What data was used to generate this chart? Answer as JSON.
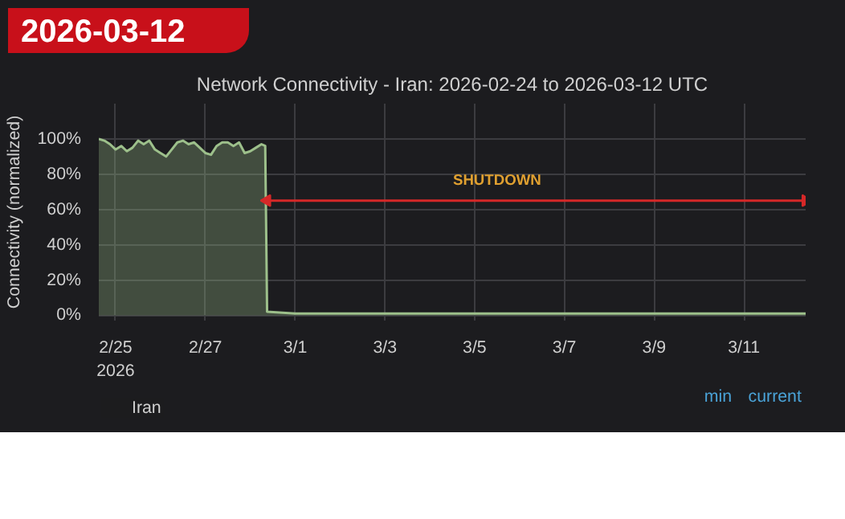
{
  "chart_data": {
    "type": "area",
    "title": "Network Connectivity - Iran: 2026-02-24 to 2026-03-12 UTC",
    "ylabel": "Connectivity (normalized)",
    "x": [
      "2026-02-24T15:00",
      "2026-02-24T18:00",
      "2026-02-24T21:00",
      "2026-02-25T00:00",
      "2026-02-25T03:00",
      "2026-02-25T06:00",
      "2026-02-25T09:00",
      "2026-02-25T12:00",
      "2026-02-25T15:00",
      "2026-02-25T18:00",
      "2026-02-25T21:00",
      "2026-02-26T00:00",
      "2026-02-26T03:00",
      "2026-02-26T06:00",
      "2026-02-26T09:00",
      "2026-02-26T12:00",
      "2026-02-26T15:00",
      "2026-02-26T18:00",
      "2026-02-26T21:00",
      "2026-02-27T00:00",
      "2026-02-27T03:00",
      "2026-02-27T06:00",
      "2026-02-27T09:00",
      "2026-02-27T12:00",
      "2026-02-27T15:00",
      "2026-02-27T18:00",
      "2026-02-27T21:00",
      "2026-02-28T00:00",
      "2026-02-28T03:00",
      "2026-02-28T06:00",
      "2026-02-28T08:00",
      "2026-02-28T09:00",
      "2026-03-01T00:00",
      "2026-03-03T00:00",
      "2026-03-05T00:00",
      "2026-03-07T00:00",
      "2026-03-09T00:00",
      "2026-03-11T00:00",
      "2026-03-12T09:00"
    ],
    "series": [
      {
        "name": "Iran",
        "color": "#9dc08b",
        "values": [
          100,
          99,
          97,
          94,
          96,
          93,
          95,
          99,
          97,
          99,
          94,
          92,
          90,
          94,
          98,
          99,
          97,
          98,
          95,
          92,
          91,
          96,
          98,
          98,
          96,
          98,
          92,
          93,
          95,
          97,
          96,
          2,
          1,
          1,
          1,
          1,
          1,
          1,
          1
        ]
      },
      {
        "type": "line",
        "color": "#d62828",
        "marker": "triangle",
        "x": [
          "2026-02-28T09:00",
          "2026-03-12T09:00"
        ],
        "values": [
          65,
          65
        ]
      }
    ],
    "xlim": [
      "2026-02-24T15:00",
      "2026-03-12T09:00"
    ],
    "xticks": [
      {
        "value": "2026-02-25",
        "label": "2/25\n2026"
      },
      {
        "value": "2026-02-27",
        "label": "2/27"
      },
      {
        "value": "2026-03-01",
        "label": "3/1"
      },
      {
        "value": "2026-03-03",
        "label": "3/3"
      },
      {
        "value": "2026-03-05",
        "label": "3/5"
      },
      {
        "value": "2026-03-07",
        "label": "3/7"
      },
      {
        "value": "2026-03-09",
        "label": "3/9"
      },
      {
        "value": "2026-03-11",
        "label": "3/11"
      }
    ],
    "ylim": [
      -3,
      120
    ],
    "yticks": [
      {
        "value": 0,
        "label": "0%"
      },
      {
        "value": 20,
        "label": "20%"
      },
      {
        "value": 40,
        "label": "40%"
      },
      {
        "value": 60,
        "label": "60%"
      },
      {
        "value": 80,
        "label": "80%"
      },
      {
        "value": 100,
        "label": "100%"
      }
    ],
    "annotations": [
      {
        "text": "SHUTDOWN",
        "x": "2026-03-05T12:00",
        "y": 65
      },
      "2026-03-12",
      "min",
      "current"
    ],
    "grid": true,
    "legend": "bottom left"
  }
}
